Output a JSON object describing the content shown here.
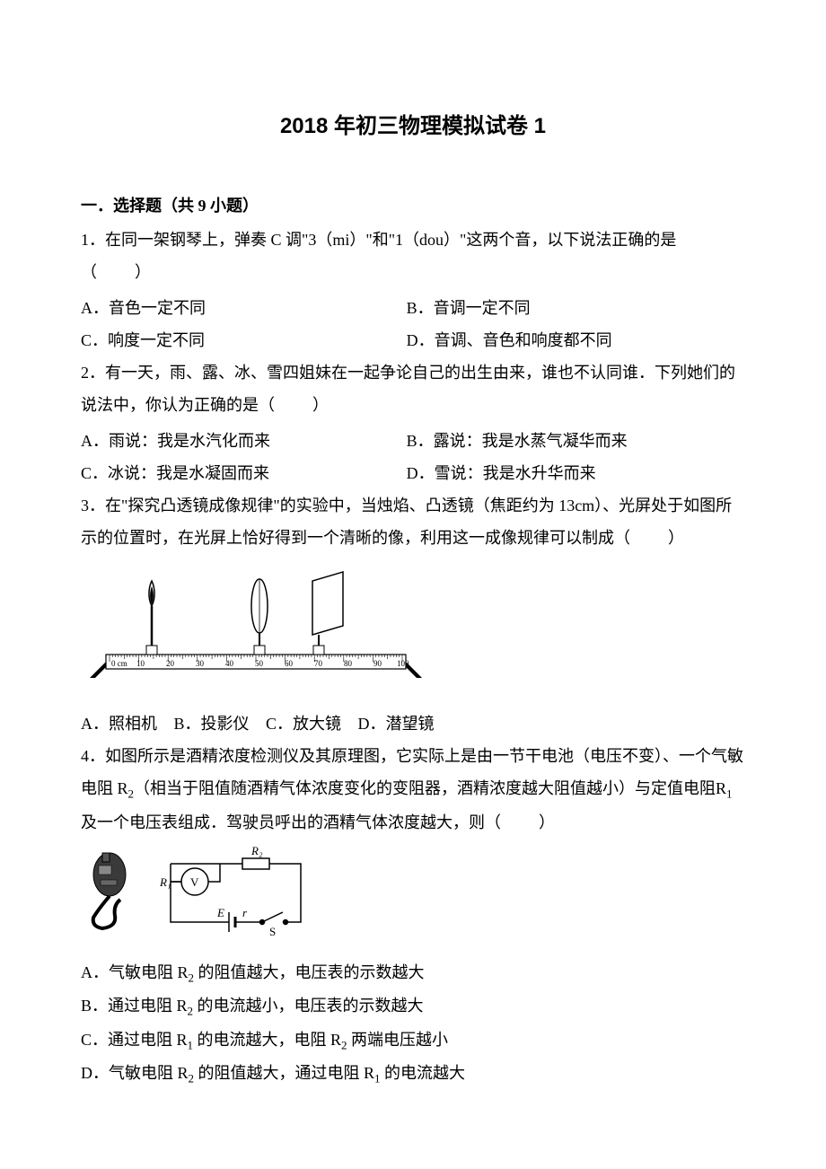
{
  "title": "2018 年初三物理模拟试卷 1",
  "section": "一．选择题（共 9 小题）",
  "blank": "（　　）",
  "q1": {
    "num": "1．",
    "text": "在同一架钢琴上，弹奏 C 调\"3（mi）\"和\"1（dou）\"这两个音，以下说法正确的是",
    "A": "A．音色一定不同",
    "B": "B．音调一定不同",
    "C": "C．响度一定不同",
    "D": "D．音调、音色和响度都不同"
  },
  "q2": {
    "num": "2．",
    "text": "有一天，雨、露、冰、雪四姐妹在一起争论自己的出生由来，谁也不认同谁．下列她们的说法中，你认为正确的是",
    "A": "A．雨说：我是水汽化而来",
    "B": "B．露说：我是水蒸气凝华而来",
    "C": "C．冰说：我是水凝固而来",
    "D": "D．雪说：我是水升华而来"
  },
  "q3": {
    "num": "3．",
    "text": "在\"探究凸透镜成像规律\"的实验中，当烛焰、凸透镜（焦距约为 13cm）、光屏处于如图所示的位置时，在光屏上恰好得到一个清晰的像，利用这一成像规律可以制成",
    "A": "A．照相机",
    "B": "B．投影仪",
    "C": "C．放大镜",
    "D": "D．潜望镜",
    "figure": {
      "ruler_labels": [
        "0 cm",
        "10",
        "20",
        "30",
        "40",
        "50",
        "60",
        "70",
        "80",
        "90",
        "100"
      ],
      "stroke": "#000000",
      "bg": "#ffffff"
    }
  },
  "q4": {
    "num": "4．",
    "text1": "如图所示是酒精浓度检测仪及其原理图，它实际上是由一节干电池（电压不变）、一个气敏电阻 R",
    "text2": "（相当于阻值随酒精气体浓度变化的变阻器，酒精浓度越大阻值越小）与定值电阻R",
    "text3": " 及一个电压表组成．驾驶员呼出的酒精气体浓度越大，则",
    "A1": "A．气敏电阻 R",
    "A2": " 的阻值越大，电压表的示数越大",
    "B1": "B．通过电阻 R",
    "B2": " 的电流越小，电压表的示数越大",
    "C1": "C．通过电阻 R",
    "C2": " 的电流越大，电阻 R",
    "C3": " 两端电压越小",
    "D1": "D．气敏电阻 R",
    "D2": " 的阻值越大，通过电阻 R",
    "D3": " 的电流越大",
    "sub1": "1",
    "sub2": "2",
    "figure": {
      "labels": {
        "R1": "R₁",
        "R2": "R₂",
        "V": "V",
        "E": "E",
        "r": "r",
        "S": "S"
      },
      "stroke": "#000000",
      "device_fill": "#3a3a3a"
    }
  }
}
